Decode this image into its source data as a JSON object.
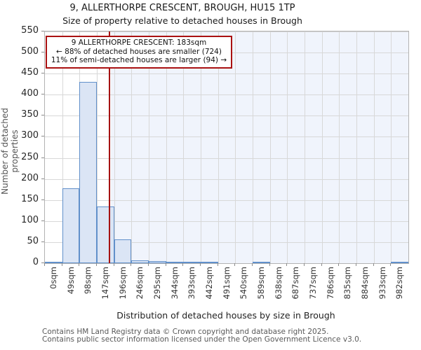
{
  "title": {
    "line1": "9, ALLERTHORPE CRESCENT, BROUGH, HU15 1TP",
    "line2": "Size of property relative to detached houses in Brough"
  },
  "chart_data": {
    "type": "bar",
    "title": "9, ALLERTHORPE CRESCENT, BROUGH, HU15 1TP — Size of property relative to detached houses in Brough",
    "categories": [
      "0sqm",
      "49sqm",
      "98sqm",
      "147sqm",
      "196sqm",
      "246sqm",
      "295sqm",
      "344sqm",
      "393sqm",
      "442sqm",
      "491sqm",
      "540sqm",
      "589sqm",
      "638sqm",
      "687sqm",
      "737sqm",
      "786sqm",
      "835sqm",
      "884sqm",
      "933sqm",
      "982sqm"
    ],
    "values": [
      3,
      178,
      430,
      135,
      57,
      6,
      5,
      2,
      1,
      1,
      0,
      0,
      1,
      0,
      0,
      0,
      0,
      0,
      0,
      0,
      2
    ],
    "bin_width_sqm": 49,
    "xlabel": "Distribution of detached houses by size in Brough",
    "ylabel": "Number of detached properties",
    "ylim": [
      0,
      550
    ],
    "ytick_step": 50,
    "grid": true,
    "marker": {
      "value_sqm": 183,
      "note": "red vertical line at subject property size; region to the right is shaded"
    },
    "annotation": {
      "line1": "9 ALLERTHORPE CRESCENT: 183sqm",
      "line2": "← 88% of detached houses are smaller (724)",
      "line3": "11% of semi-detached houses are larger (94) →"
    },
    "colors": {
      "bar_fill": "#dbe5f5",
      "bar_edge": "#6190ca",
      "marker_line": "#a51212",
      "annotation_border": "#aa1111",
      "shaded_region": "#f0f4fc",
      "grid": "#d8d8d8"
    }
  },
  "footer": {
    "line1": "Contains HM Land Registry data © Crown copyright and database right 2025.",
    "line2": "Contains public sector information licensed under the Open Government Licence v3.0."
  }
}
